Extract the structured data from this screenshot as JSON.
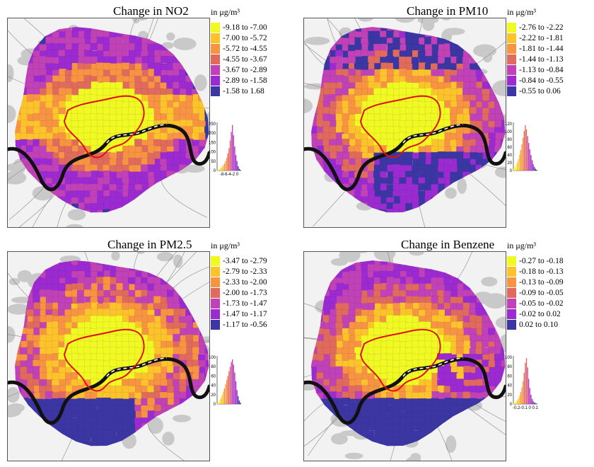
{
  "colors": {
    "classes": [
      "#f0f921",
      "#fdc32b",
      "#f89341",
      "#e06a5b",
      "#c141b6",
      "#9b2ad1",
      "#3b36a3"
    ],
    "boundary": "#e01010",
    "river": "#111111",
    "map_background": "#f2f2f2",
    "road_lines": "#888888"
  },
  "panels": [
    {
      "title": "Change in NO2",
      "unit": "in μg/m³",
      "legend": [
        "-9.18 to -7.00",
        "-7.00 to -5.72",
        "-5.72 to -4.55",
        "-4.55 to -3.67",
        "-3.67 to -2.89",
        "-2.89 to -1.58",
        "-1.58 to 1.68"
      ],
      "histogram": {
        "y_ticks": [
          "250",
          "200",
          "150",
          "100",
          "50",
          "0"
        ],
        "x_ticks": "-8-6-4-2 0",
        "ymax": 280,
        "counts": [
          3,
          6,
          10,
          16,
          22,
          30,
          40,
          55,
          75,
          100,
          130,
          175,
          225,
          265,
          205,
          140,
          90,
          55,
          25,
          10,
          4
        ]
      }
    },
    {
      "title": "Change in PM10",
      "unit": "in μg/m³",
      "legend": [
        "-2.76 to -2.22",
        "-2.22 to -1.81",
        "-1.81 to -1.44",
        "-1.44 to -1.13",
        "-1.13 to -0.84",
        "-0.84 to -0.55",
        "-0.55 to 0.06"
      ],
      "histogram": {
        "y_ticks": [
          "120",
          "100",
          "80",
          "60",
          "40",
          "20",
          "0"
        ],
        "x_ticks": "",
        "ymax": 140,
        "counts": [
          6,
          10,
          16,
          24,
          34,
          46,
          60,
          76,
          95,
          115,
          132,
          120,
          100,
          80,
          62,
          45,
          30,
          18,
          10,
          5,
          2
        ]
      }
    },
    {
      "title": "Change in PM2.5",
      "unit": "in μg/m³",
      "legend": [
        "-3.47 to -2.79",
        "-2.79 to -2.33",
        "-2.33 to -2.00",
        "-2.00 to -1.73",
        "-1.73 to -1.47",
        "-1.47 to -1.17",
        "-1.17 to -0.56"
      ],
      "histogram": {
        "y_ticks": [
          "100",
          "80",
          "60",
          "40",
          "20",
          "0"
        ],
        "x_ticks": "",
        "ymax": 110,
        "counts": [
          2,
          5,
          9,
          14,
          20,
          28,
          36,
          45,
          55,
          64,
          75,
          85,
          96,
          102,
          90,
          72,
          52,
          32,
          18,
          8,
          3
        ]
      }
    },
    {
      "title": "Change in Benzene",
      "unit": "in μg/m³",
      "legend": [
        "-0.27 to -0.18",
        "-0.18 to -0.13",
        "-0.13 to -0.09",
        "-0.09 to -0.05",
        "-0.05 to -0.02",
        "-0.02 to 0.02",
        "0.02 to 0.10"
      ],
      "histogram": {
        "y_ticks": [
          "100",
          "80",
          "60",
          "40",
          "20",
          "0"
        ],
        "x_ticks": "-0.2-0.1  0  0.1",
        "ymax": 105,
        "counts": [
          2,
          3,
          5,
          8,
          12,
          18,
          26,
          36,
          50,
          68,
          90,
          100,
          80,
          55,
          35,
          20,
          11,
          6,
          3,
          2,
          1
        ]
      }
    }
  ]
}
